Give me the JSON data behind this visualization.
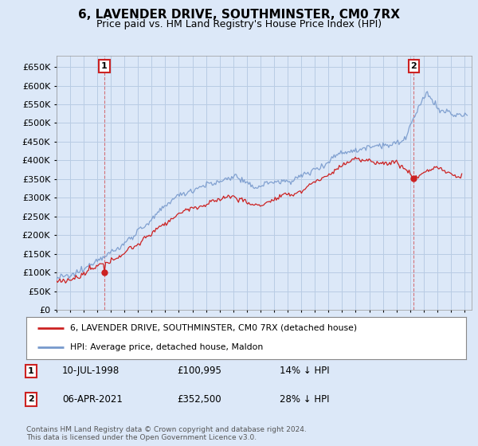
{
  "title": "6, LAVENDER DRIVE, SOUTHMINSTER, CM0 7RX",
  "subtitle": "Price paid vs. HM Land Registry's House Price Index (HPI)",
  "ytick_values": [
    0,
    50000,
    100000,
    150000,
    200000,
    250000,
    300000,
    350000,
    400000,
    450000,
    500000,
    550000,
    600000,
    650000
  ],
  "ylim": [
    0,
    680000
  ],
  "xlim_start": 1995.0,
  "xlim_end": 2025.5,
  "hpi_color": "#7799cc",
  "price_color": "#cc2222",
  "marker1_date": 1998.52,
  "marker1_price": 100995,
  "marker1_label": "1",
  "marker2_date": 2021.26,
  "marker2_price": 352500,
  "marker2_label": "2",
  "legend_line1": "6, LAVENDER DRIVE, SOUTHMINSTER, CM0 7RX (detached house)",
  "legend_line2": "HPI: Average price, detached house, Maldon",
  "background_color": "#dce8f8",
  "plot_bg_color": "#dce8f8",
  "grid_color": "#b8cce4",
  "title_fontsize": 11,
  "subtitle_fontsize": 9,
  "tick_fontsize": 8
}
